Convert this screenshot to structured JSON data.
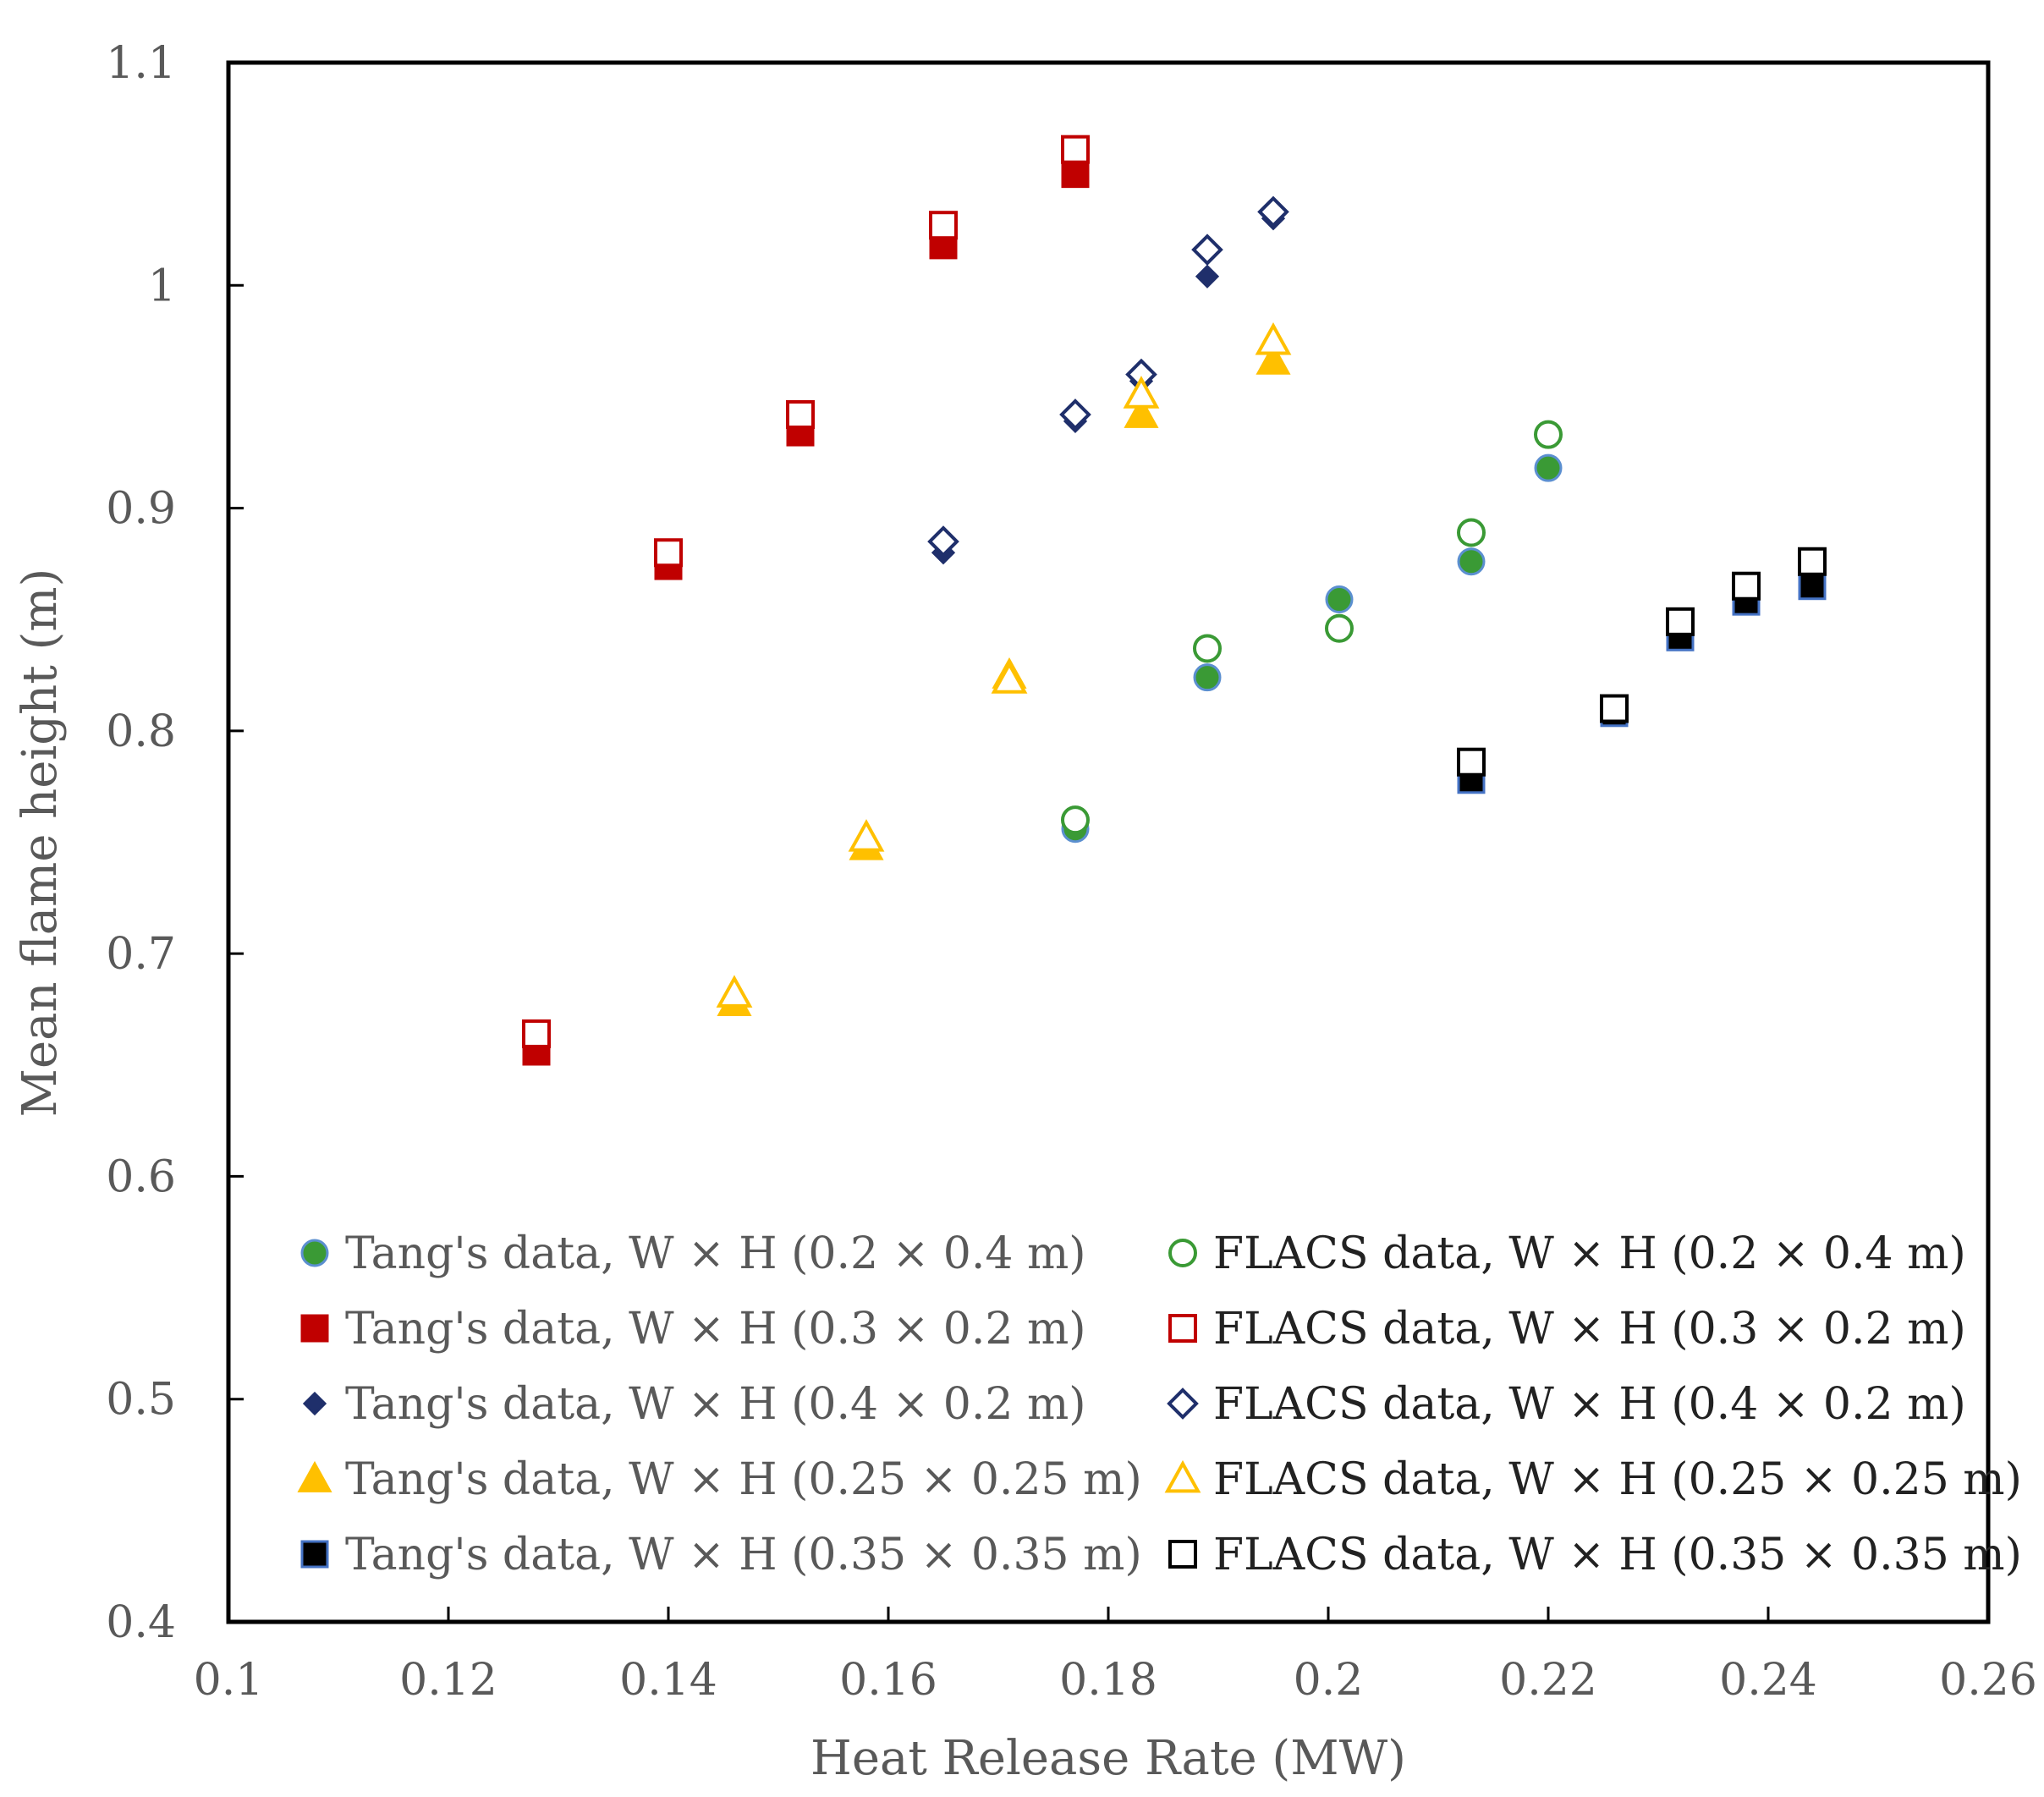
{
  "chart_data": {
    "type": "scatter",
    "title": "",
    "xlabel": "Heat Release Rate (MW)",
    "ylabel": "Mean flame height (m)",
    "xlim": [
      0.1,
      0.26
    ],
    "ylim": [
      0.4,
      1.1
    ],
    "xticks": [
      0.1,
      0.12,
      0.14,
      0.16,
      0.18,
      0.2,
      0.22,
      0.24,
      0.26
    ],
    "xtick_labels": [
      "0.1",
      "0.12",
      "0.14",
      "0.16",
      "0.18",
      "0.2",
      "0.22",
      "0.24",
      "0.26"
    ],
    "yticks": [
      0.4,
      0.5,
      0.6,
      0.7,
      0.8,
      0.9,
      1,
      1.1
    ],
    "ytick_labels": [
      "0.4",
      "0.5",
      "0.6",
      "0.7",
      "0.8",
      "0.9",
      "1",
      "1.1"
    ],
    "grid": false,
    "legend_position": "bottom, two columns",
    "series": [
      {
        "name": "Tang's data, W × H (0.2 × 0.4 m)",
        "marker": "circle-filled",
        "color": "#3a9a35",
        "edge": "#5b8fd0",
        "legend_column": 0,
        "x": [
          0.177,
          0.189,
          0.201,
          0.213,
          0.22
        ],
        "y": [
          0.756,
          0.824,
          0.859,
          0.876,
          0.918
        ]
      },
      {
        "name": "Tang's data, W × H (0.3 × 0.2 m)",
        "marker": "square-filled",
        "color": "#c00000",
        "edge": "#c00000",
        "legend_column": 0,
        "x": [
          0.128,
          0.14,
          0.152,
          0.165,
          0.177
        ],
        "y": [
          0.656,
          0.874,
          0.934,
          1.018,
          1.05
        ]
      },
      {
        "name": "Tang's data, W × H (0.4 × 0.2 m)",
        "marker": "diamond-filled",
        "color": "#1f2f6b",
        "edge": "#1f2f6b",
        "legend_column": 0,
        "x": [
          0.165,
          0.177,
          0.183,
          0.189,
          0.195
        ],
        "y": [
          0.88,
          0.939,
          0.957,
          1.004,
          1.03
        ]
      },
      {
        "name": "Tang's data, W × H (0.25 × 0.25 m)",
        "marker": "triangle-filled",
        "color": "#ffc000",
        "edge": "#ffc000",
        "legend_column": 0,
        "x": [
          0.146,
          0.158,
          0.171,
          0.183,
          0.195
        ],
        "y": [
          0.678,
          0.748,
          0.825,
          0.942,
          0.966
        ]
      },
      {
        "name": "Tang's data, W × H (0.35 × 0.35 m)",
        "marker": "square-filled",
        "color": "#000000",
        "edge": "#4472c4",
        "legend_column": 0,
        "x": [
          0.213,
          0.226,
          0.232,
          0.238,
          0.244
        ],
        "y": [
          0.778,
          0.808,
          0.842,
          0.858,
          0.865
        ]
      },
      {
        "name": "FLACS data, W × H (0.2 × 0.4 m)",
        "marker": "circle-open",
        "color": "#3a9a35",
        "edge": "#3a9a35",
        "legend_column": 1,
        "x": [
          0.177,
          0.189,
          0.201,
          0.213,
          0.22
        ],
        "y": [
          0.76,
          0.837,
          0.846,
          0.889,
          0.933
        ]
      },
      {
        "name": "FLACS data, W × H (0.3 × 0.2 m)",
        "marker": "square-open",
        "color": "#c00000",
        "edge": "#c00000",
        "legend_column": 1,
        "x": [
          0.128,
          0.14,
          0.152,
          0.165,
          0.177
        ],
        "y": [
          0.664,
          0.88,
          0.942,
          1.027,
          1.061
        ]
      },
      {
        "name": "FLACS data, W × H (0.4 × 0.2 m)",
        "marker": "diamond-open",
        "color": "#1f2f6b",
        "edge": "#1f2f6b",
        "legend_column": 1,
        "x": [
          0.165,
          0.177,
          0.183,
          0.189,
          0.195
        ],
        "y": [
          0.885,
          0.942,
          0.96,
          1.016,
          1.033
        ]
      },
      {
        "name": "FLACS data, W × H (0.25 × 0.25 m)",
        "marker": "triangle-open",
        "color": "#ffc000",
        "edge": "#ffc000",
        "legend_column": 1,
        "x": [
          0.146,
          0.158,
          0.171,
          0.183,
          0.195
        ],
        "y": [
          0.682,
          0.752,
          0.823,
          0.951,
          0.975
        ]
      },
      {
        "name": "FLACS data, W × H (0.35 × 0.35 m)",
        "marker": "square-open",
        "color": "#000000",
        "edge": "#000000",
        "legend_column": 1,
        "x": [
          0.213,
          0.226,
          0.232,
          0.238,
          0.244
        ],
        "y": [
          0.786,
          0.81,
          0.849,
          0.865,
          0.876
        ]
      }
    ]
  }
}
